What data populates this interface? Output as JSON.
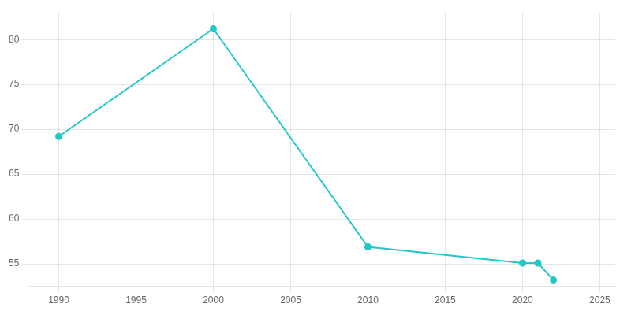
{
  "chart_data": {
    "type": "line",
    "x": [
      1990,
      2000,
      2010,
      2020,
      2021,
      2022
    ],
    "values": [
      69.2,
      81.2,
      56.9,
      55.1,
      55.1,
      53.2
    ],
    "color": "#20C8C8",
    "marker": "circle",
    "xlim": [
      1988,
      2026
    ],
    "xticks": [
      1990,
      1995,
      2000,
      2005,
      2010,
      2015,
      2020,
      2025
    ],
    "ylim": [
      52.5,
      83
    ],
    "yticks": [
      55,
      60,
      65,
      70,
      75,
      80
    ],
    "grid": true
  }
}
